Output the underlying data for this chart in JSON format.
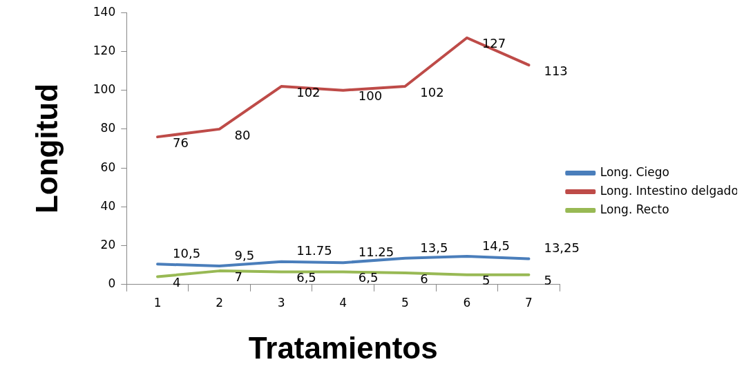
{
  "chart_data": {
    "type": "line",
    "xlabel": "Tratamientos",
    "ylabel": "Longitud",
    "categories": [
      "1",
      "2",
      "3",
      "4",
      "5",
      "6",
      "7"
    ],
    "series": [
      {
        "name": "Long. Ciego",
        "color": "#4a7ebb",
        "values": [
          10.5,
          9.5,
          11.75,
          11.25,
          13.5,
          14.5,
          13.25
        ],
        "value_labels": [
          "10,5",
          "9,5",
          "11.75",
          "11.25",
          "13,5",
          "14,5",
          "13,25"
        ]
      },
      {
        "name": "Long. Intestino delgado",
        "color": "#be4b48",
        "values": [
          76,
          80,
          102,
          100,
          102,
          127,
          113
        ],
        "value_labels": [
          "76",
          "80",
          "102",
          "100",
          "102",
          "127",
          "113"
        ]
      },
      {
        "name": "Long. Recto",
        "color": "#98b954",
        "values": [
          4,
          7,
          6.5,
          6.5,
          6,
          5,
          5
        ],
        "value_labels": [
          "4",
          "7",
          "6,5",
          "6,5",
          "6",
          "5",
          "5"
        ]
      }
    ],
    "ylim": [
      0,
      140
    ],
    "yticks": [
      0,
      20,
      40,
      60,
      80,
      100,
      120,
      140
    ],
    "grid": false,
    "legend": "right",
    "marker": "none",
    "line_style": "solid"
  }
}
